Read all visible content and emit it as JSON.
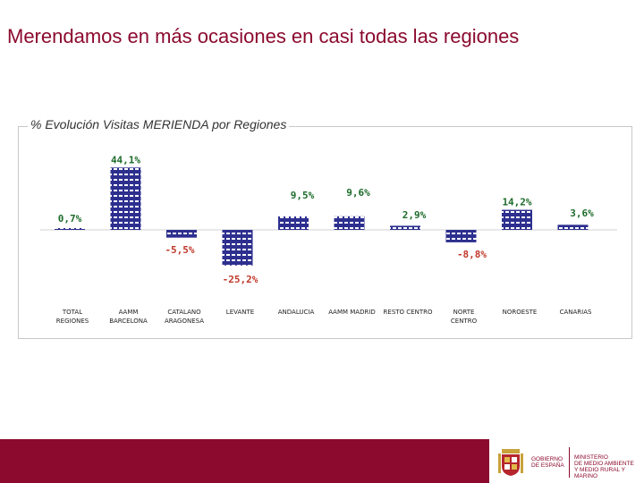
{
  "slide": {
    "title": "Merendamos en más ocasiones en casi todas las regiones"
  },
  "footer": {
    "gov_label": "GOBIERNO\nDE ESPAÑA",
    "ministry_label": "MINISTERIO\nDE MEDIO AMBIENTE\nY MEDIO RURAL Y MARINO",
    "band_color": "#8b0a2e"
  },
  "chart_data": {
    "type": "bar",
    "title": "% Evolución Visitas MERIENDA por Regiones",
    "categories": [
      "TOTAL\nREGIONES",
      "AAMM\nBARCELONA",
      "CATALANO\nARAGONESA",
      "LEVANTE",
      "ANDALUCIA",
      "AAMM MADRID",
      "RESTO CENTRO",
      "NORTE\nCENTRO",
      "NOROESTE",
      "CANARIAS"
    ],
    "values": [
      0.7,
      44.1,
      -5.5,
      -25.2,
      9.5,
      9.6,
      2.9,
      -8.8,
      14.2,
      3.6
    ],
    "data_labels": [
      "0,7%",
      "44,1%",
      "-5,5%",
      "-25,2%",
      "9,5%",
      "9,6%",
      "2,9%",
      "-8,8%",
      "14,2%",
      "3,6%"
    ],
    "colors": {
      "bar": "#2d2f8f",
      "positive_label": "#1d6b2a",
      "negative_label": "#c0392b"
    },
    "ylim": [
      -26,
      45
    ],
    "grid": false,
    "legend": "none"
  }
}
